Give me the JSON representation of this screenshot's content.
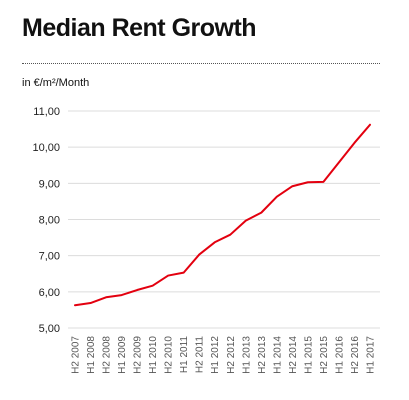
{
  "chart_data": {
    "type": "line",
    "title": "Median Rent Growth",
    "ylabel": "in €/m²/Month",
    "xlabel": "",
    "ylim": [
      5.0,
      11.0
    ],
    "yticks": [
      "5,00",
      "6,00",
      "7,00",
      "8,00",
      "9,00",
      "10,00",
      "11,00"
    ],
    "categories": [
      "H2 2007",
      "H1 2008",
      "H2 2008",
      "H1 2009",
      "H2 2009",
      "H1 2010",
      "H2 2010",
      "H1 2011",
      "H2 2011",
      "H1 2012",
      "H2 2012",
      "H1 2013",
      "H2 2013",
      "H1 2014",
      "H2 2014",
      "H1 2015",
      "H2 2015",
      "H1 2016",
      "H2 2016",
      "H1 2017"
    ],
    "series": [
      {
        "values": [
          5.63,
          5.69,
          5.85,
          5.91,
          6.05,
          6.17,
          6.45,
          6.53,
          7.03,
          7.37,
          7.58,
          7.97,
          8.19,
          8.63,
          8.92,
          9.03,
          9.04,
          9.58,
          10.12,
          10.62
        ]
      }
    ],
    "grid": true,
    "legend": "none",
    "line_color": "#e3000f",
    "grid_color": "#dcdcdc",
    "text_color": "#555555"
  }
}
